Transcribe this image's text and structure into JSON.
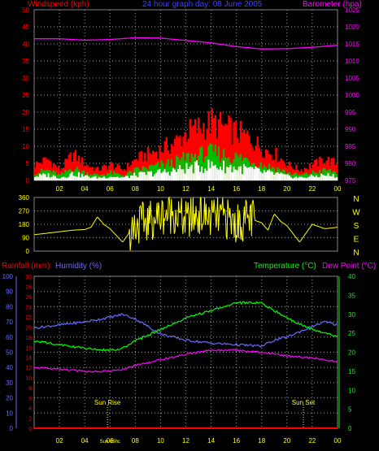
{
  "header": {
    "left_label": "Windspeed (kph)",
    "title": "24 hour graph day: 08 June 2005",
    "right_label": "Barometer (hpa)"
  },
  "colors": {
    "wind_avg": "#ff0000",
    "wind_gust": "#ffffff",
    "wind_low": "#00c000",
    "barometer": "#ff00ff",
    "direction": "#ffff00",
    "rainfall": "#ff0000",
    "humidity": "#6a6aff",
    "temperature": "#00ff00",
    "dewpoint": "#ff00ff",
    "axis_text": "#ffff00",
    "grid": "#a0a0a0"
  },
  "chart_data": [
    {
      "id": "wind-barometer",
      "type": "line",
      "title": "24 hour graph day: 08 June 2005",
      "ylabel_left": "Windspeed (kph)",
      "ylabel_right": "Barometer (hpa)",
      "ylim_left": [
        0,
        50
      ],
      "ylim_right": [
        975,
        1025
      ],
      "xlim": [
        0,
        24
      ],
      "x_ticks": [
        "02",
        "04",
        "06",
        "08",
        "10",
        "12",
        "14",
        "16",
        "18",
        "20",
        "22",
        "00"
      ],
      "left_ticks": [
        "0",
        "5",
        "10",
        "15",
        "20",
        "25",
        "30",
        "35",
        "40",
        "45",
        "50"
      ],
      "right_ticks": [
        "975",
        "980",
        "985",
        "990",
        "995",
        "1000",
        "1005",
        "1010",
        "1015",
        "1020",
        "1025"
      ],
      "grid": true,
      "series": [
        {
          "name": "Barometer (hpa)",
          "axis": "right",
          "x": [
            0,
            2,
            4,
            6,
            8,
            10,
            12,
            14,
            16,
            18,
            20,
            22,
            24
          ],
          "values": [
            1016.5,
            1016.5,
            1016.1,
            1016.3,
            1016.8,
            1016.7,
            1016,
            1015.3,
            1014.2,
            1013.5,
            1013.6,
            1014,
            1014.6
          ]
        },
        {
          "name": "Windspeed (kph)",
          "axis": "left",
          "x": [
            0,
            1,
            2,
            3,
            4,
            5,
            6,
            7,
            8,
            9,
            10,
            11,
            12,
            13,
            14,
            15,
            16,
            17,
            18,
            19,
            20,
            21,
            22,
            23,
            24
          ],
          "values": [
            3,
            4,
            2,
            5,
            3,
            2,
            3,
            2,
            4,
            5,
            6,
            7,
            9,
            10,
            11,
            10,
            9,
            8,
            6,
            5,
            3,
            2,
            3,
            4,
            3
          ]
        }
      ]
    },
    {
      "id": "wind-direction",
      "type": "line",
      "left_ticks": [
        "0",
        "90",
        "180",
        "270",
        "360"
      ],
      "right_labels": [
        "N",
        "W",
        "S",
        "E",
        "N"
      ],
      "ylim": [
        0,
        360
      ],
      "xlim": [
        0,
        24
      ],
      "grid": true,
      "series": [
        {
          "name": "direction",
          "x": [
            0,
            1,
            2,
            3,
            4,
            4.5,
            5,
            5.5,
            6,
            7,
            8,
            9,
            10,
            11,
            12,
            13,
            14,
            15,
            16,
            17,
            18,
            18.5,
            19,
            19.5,
            20,
            21,
            22,
            23,
            24
          ],
          "values": [
            110,
            120,
            130,
            140,
            145,
            160,
            230,
            180,
            150,
            60,
            180,
            200,
            240,
            260,
            200,
            250,
            220,
            230,
            180,
            220,
            190,
            140,
            250,
            200,
            170,
            60,
            180,
            150,
            160
          ]
        }
      ]
    },
    {
      "id": "rain-hum-temp",
      "type": "line",
      "ylabel_left_1": "Rainfall (mm)",
      "ylabel_left_2": "Humidity (%)",
      "ylabel_right": "Temperature (°C)",
      "ylabel_right_2": "Dew Point (°C)",
      "ylim_humidity": [
        0,
        100
      ],
      "ylim_rain": [
        0,
        30
      ],
      "ylim_temp": [
        0,
        40
      ],
      "xlim": [
        0,
        24
      ],
      "humidity_ticks": [
        "0",
        "10",
        "20",
        "30",
        "40",
        "50",
        "60",
        "70",
        "80",
        "90",
        "100"
      ],
      "rain_ticks": [
        "0",
        "2",
        "4",
        "6",
        "8",
        "10",
        "12",
        "14",
        "16",
        "18",
        "20",
        "22",
        "24",
        "26",
        "28",
        "30"
      ],
      "temp_ticks": [
        "0",
        "5",
        "10",
        "15",
        "20",
        "25",
        "30",
        "35",
        "40"
      ],
      "annotations": [
        {
          "label": "Sun Rise",
          "x": 5.8
        },
        {
          "label": "Sun Set",
          "x": 21.3
        },
        {
          "label": "Sun 06hc",
          "x": 6
        }
      ],
      "grid": true,
      "series": [
        {
          "name": "Humidity (%)",
          "axis": "humidity",
          "x": [
            0,
            2,
            4,
            6,
            7,
            8,
            10,
            12,
            14,
            16,
            18,
            19,
            20,
            22,
            23,
            24
          ],
          "values": [
            66,
            68,
            70,
            73,
            75,
            72,
            62,
            58,
            56,
            55,
            54,
            58,
            60,
            67,
            70,
            68
          ]
        },
        {
          "name": "Temperature (°C)",
          "axis": "temp",
          "x": [
            0,
            2,
            4,
            6,
            7,
            8,
            10,
            12,
            14,
            16,
            18,
            20,
            22,
            24
          ],
          "values": [
            23,
            22,
            21,
            20.5,
            21,
            23,
            26,
            29,
            31,
            33,
            33,
            29,
            26,
            24
          ]
        },
        {
          "name": "Dew Point (°C)",
          "axis": "temp",
          "x": [
            0,
            2,
            4,
            6,
            7,
            8,
            10,
            12,
            14,
            16,
            18,
            20,
            22,
            24
          ],
          "values": [
            16,
            15.5,
            15,
            15,
            15.5,
            16.5,
            18,
            19.5,
            20.5,
            20.5,
            20,
            19,
            18.5,
            17.5
          ]
        },
        {
          "name": "Rainfall (mm)",
          "axis": "rain",
          "x": [
            0,
            24
          ],
          "values": [
            0,
            0
          ]
        }
      ]
    }
  ]
}
